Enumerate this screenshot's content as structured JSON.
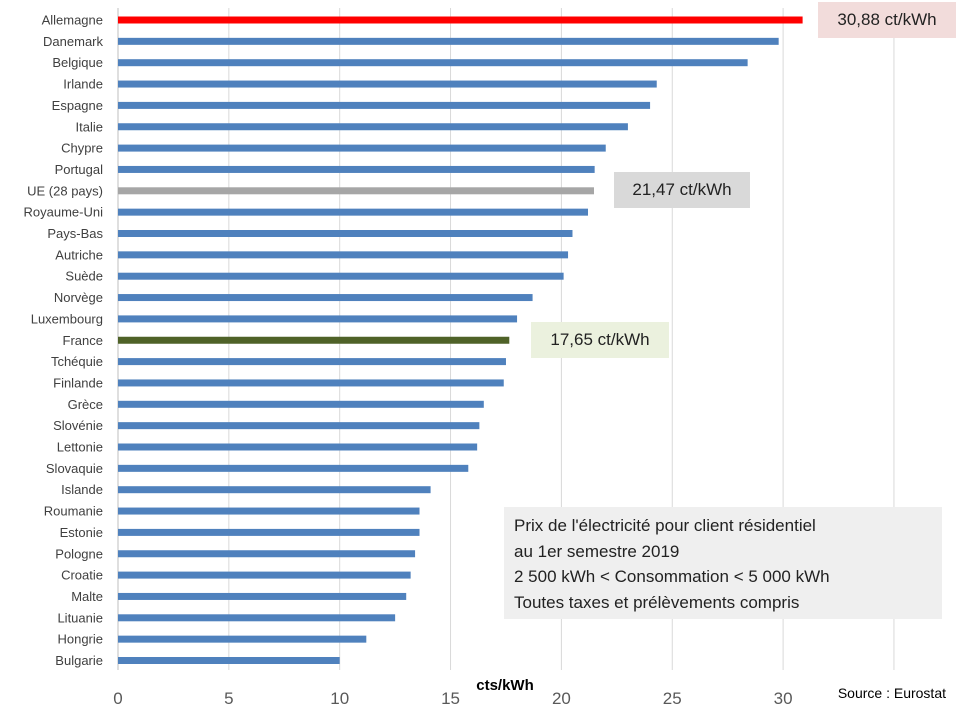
{
  "chart_data": {
    "type": "bar",
    "orientation": "horizontal",
    "categories": [
      "Allemagne",
      "Danemark",
      "Belgique",
      "Irlande",
      "Espagne",
      "Italie",
      "Chypre",
      "Portugal",
      "UE (28 pays)",
      "Royaume-Uni",
      "Pays-Bas",
      "Autriche",
      "Suède",
      "Norvège",
      "Luxembourg",
      "France",
      "Tchéquie",
      "Finlande",
      "Grèce",
      "Slovénie",
      "Lettonie",
      "Slovaquie",
      "Islande",
      "Roumanie",
      "Estonie",
      "Pologne",
      "Croatie",
      "Malte",
      "Lituanie",
      "Hongrie",
      "Bulgarie"
    ],
    "values": [
      30.88,
      29.8,
      28.4,
      24.3,
      24.0,
      23.0,
      22.0,
      21.5,
      21.47,
      21.2,
      20.5,
      20.3,
      20.1,
      18.7,
      18.0,
      17.65,
      17.5,
      17.4,
      16.5,
      16.3,
      16.2,
      15.8,
      14.1,
      13.6,
      13.6,
      13.4,
      13.2,
      13.0,
      12.5,
      11.2,
      10.0
    ],
    "highlight_colors": {
      "Allemagne": "#ff0000",
      "UE (28 pays)": "#a6a6a6",
      "France": "#4f6228"
    },
    "default_color": "#4f81bd",
    "xlim": [
      0,
      35
    ],
    "xticks": [
      "0",
      "5",
      "10",
      "15",
      "20",
      "25",
      "30"
    ],
    "xlabel": "cts/kWh",
    "grid": true,
    "title": ""
  },
  "callouts": {
    "germany": "30,88 ct/kWh",
    "eu": "21,47 ct/kWh",
    "france": "17,65 ct/kWh"
  },
  "callout_colors": {
    "germany": "#f2dcdb",
    "eu": "#d9d9d9",
    "france": "#ebf1de"
  },
  "info_box": {
    "line1": "Prix de l'électricité pour client résidentiel",
    "line2": "au 1er semestre  2019",
    "line3": "2 500 kWh < Consommation < 5 000 kWh",
    "line4": "Toutes  taxes et prélèvements  compris",
    "background": "#efefef"
  },
  "source": "Source : Eurostat"
}
